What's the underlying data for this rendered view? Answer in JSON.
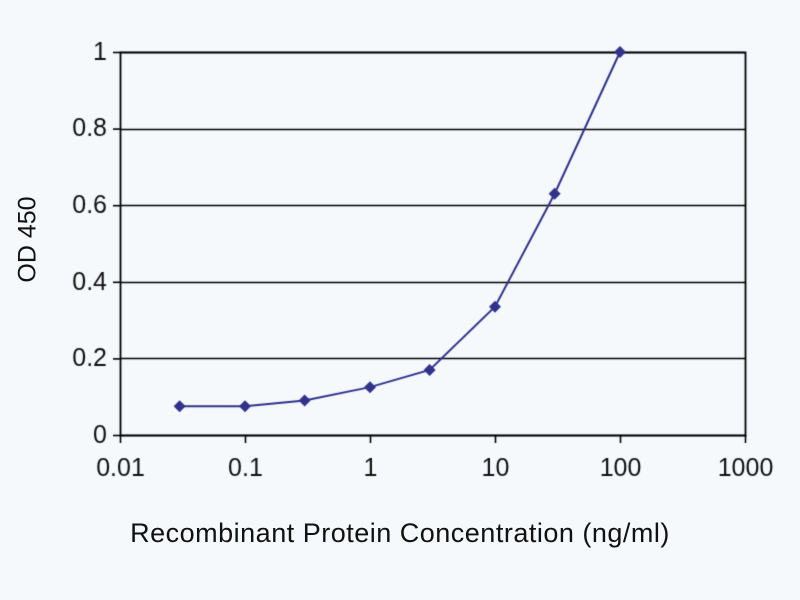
{
  "chart_data": {
    "type": "line",
    "title": "",
    "xlabel": "Recombinant Protein Concentration (ng/ml)",
    "ylabel": "OD 450",
    "xscale": "log",
    "x": [
      0.03,
      0.1,
      0.3,
      1,
      3,
      10,
      30,
      100
    ],
    "y": [
      0.075,
      0.075,
      0.09,
      0.125,
      0.17,
      0.335,
      0.63,
      1.0
    ],
    "xlim": [
      0.01,
      1000
    ],
    "ylim": [
      0,
      1
    ],
    "xticks": [
      0.01,
      0.1,
      1,
      10,
      100,
      1000
    ],
    "xtick_labels": [
      "0.01",
      "0.1",
      "1",
      "10",
      "100",
      "1000"
    ],
    "yticks": [
      0,
      0.2,
      0.4,
      0.6,
      0.8,
      1
    ],
    "ytick_labels": [
      "0",
      "0.2",
      "0.4",
      "0.6",
      "0.8",
      "1"
    ],
    "grid": "horizontal",
    "legend": false,
    "line_color": "#32328c",
    "marker": "diamond",
    "marker_color": "#32328c",
    "axis_color": "#000000",
    "text_color": "#111111",
    "background_color": "#f5f9fc"
  }
}
